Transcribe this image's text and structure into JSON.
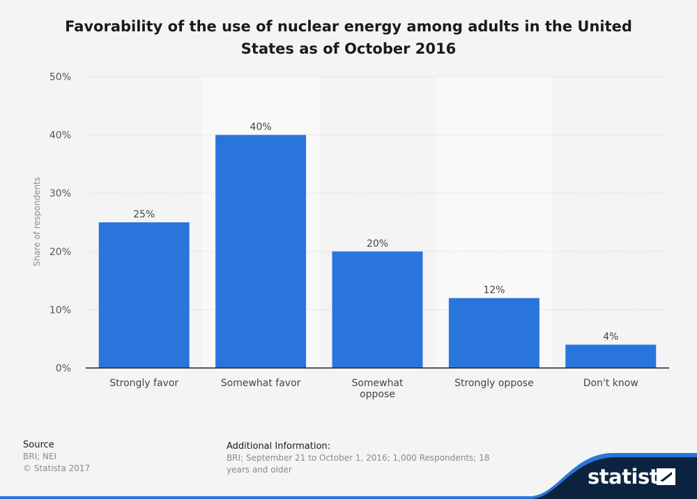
{
  "title": "Favorability of the use of nuclear energy among adults in the United States as of October 2016",
  "chart_data": {
    "type": "bar",
    "categories": [
      "Strongly favor",
      "Somewhat favor",
      "Somewhat oppose",
      "Strongly oppose",
      "Don't know"
    ],
    "category_lines": [
      [
        "Strongly favor"
      ],
      [
        "Somewhat favor"
      ],
      [
        "Somewhat",
        "oppose"
      ],
      [
        "Strongly oppose"
      ],
      [
        "Don't know"
      ]
    ],
    "values": [
      25,
      40,
      20,
      12,
      4
    ],
    "value_labels": [
      "25%",
      "40%",
      "20%",
      "12%",
      "4%"
    ],
    "ylabel": "Share of respondents",
    "ylim": [
      0,
      50
    ],
    "yticks": [
      0,
      10,
      20,
      30,
      40,
      50
    ],
    "ytick_labels": [
      "0%",
      "10%",
      "20%",
      "30%",
      "40%",
      "50%"
    ],
    "grid": true,
    "bar_color": "#2a75dc"
  },
  "footer": {
    "source_heading": "Source",
    "source_text": "BRI; NEI",
    "copyright": "© Statista 2017",
    "additional_heading": "Additional Information:",
    "additional_text": "BRI; September 21 to October 1, 2016; 1,000 Respondents; 18 years and older"
  },
  "brand": {
    "logo_text": "statista",
    "logo_icon": "statista-mark-icon",
    "color_dark": "#0c2340",
    "color_accent": "#2a75dc"
  }
}
